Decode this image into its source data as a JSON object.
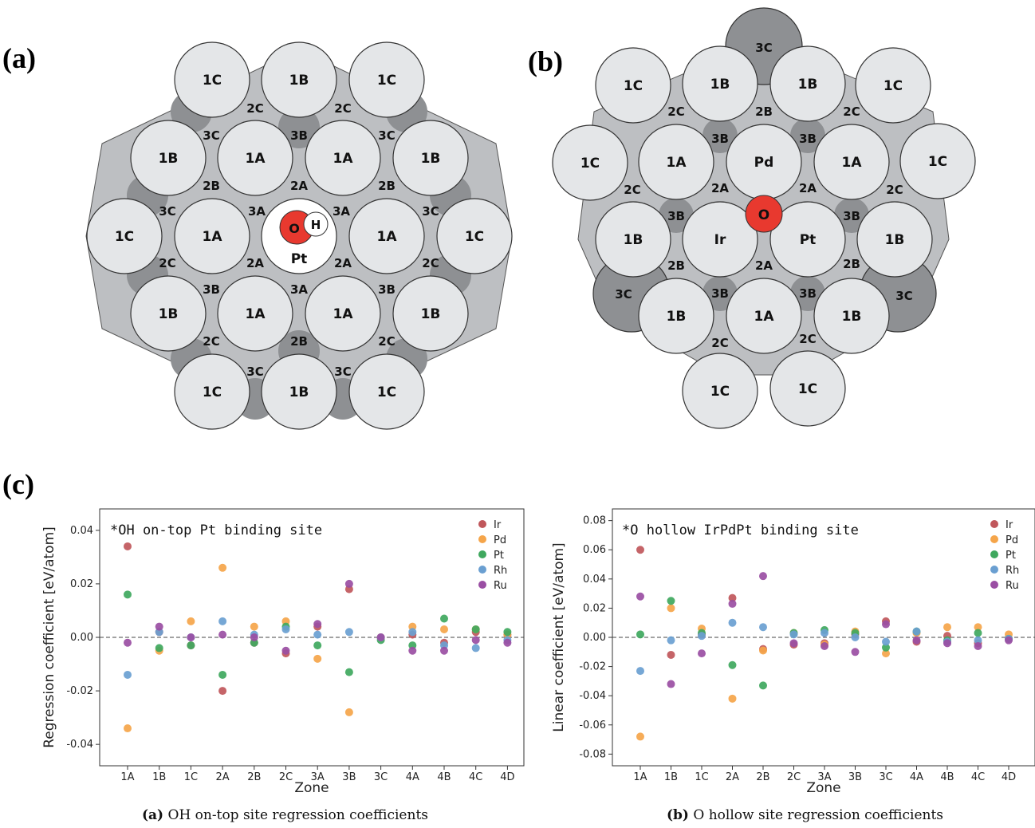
{
  "panels": {
    "a": "(a)",
    "b": "(b)",
    "c": "(c)"
  },
  "diagram_a": {
    "adsorbate_atoms": [
      "O",
      "H"
    ],
    "center_label": "Pt",
    "atom_labels": [
      "1C",
      "1B",
      "1C",
      "1B",
      "1A",
      "1A",
      "1B",
      "1C",
      "1A",
      "1A",
      "1C",
      "1B",
      "1A",
      "1A",
      "1B",
      "1C",
      "1B",
      "1C"
    ],
    "zone_labels": [
      "2C",
      "2C",
      "3C",
      "3B",
      "3C",
      "2B",
      "2A",
      "2B",
      "3C",
      "3A",
      "3A",
      "3C",
      "2C",
      "2A",
      "2A",
      "2C",
      "3B",
      "3A",
      "3B",
      "2C",
      "2B",
      "2C",
      "3C",
      "3C"
    ]
  },
  "diagram_b": {
    "adsorbate_atom": "O",
    "center_labels": [
      "Pd",
      "Ir",
      "Pt"
    ],
    "atom_labels": [
      "1C",
      "1B",
      "1B",
      "1C",
      "1C",
      "1A",
      "1A",
      "1C",
      "1B",
      "1B",
      "1B",
      "1A",
      "1B",
      "1C",
      "1C"
    ],
    "zone_labels": [
      "3C",
      "2C",
      "2B",
      "2C",
      "3B",
      "3B",
      "2C",
      "2A",
      "2A",
      "2C",
      "3B",
      "3B",
      "2B",
      "2A",
      "2B",
      "3C",
      "3B",
      "3B",
      "3C",
      "2C",
      "2C"
    ]
  },
  "legend": [
    "Ir",
    "Pd",
    "Pt",
    "Rh",
    "Ru"
  ],
  "colors": {
    "Ir": "#c0575b",
    "Pd": "#f5a54a",
    "Pt": "#3fa85e",
    "Rh": "#6a9fd1",
    "Ru": "#9a4ea3",
    "adsorbate_O": "#e8392f",
    "atom_fill": "#e4e6e8",
    "zone2": "#bdbfc2",
    "zone3": "#8e9093"
  },
  "chart_data": [
    {
      "type": "scatter",
      "title": "*OH on-top Pt binding site",
      "xlabel": "Zone",
      "ylabel": "Regression coefficient [eV/atom]",
      "caption_tag": "(a)",
      "caption": "OH on-top site regression coefficients",
      "categories": [
        "1A",
        "1B",
        "1C",
        "2A",
        "2B",
        "2C",
        "3A",
        "3B",
        "3C",
        "4A",
        "4B",
        "4C",
        "4D"
      ],
      "ylim": [
        -0.048,
        0.048
      ],
      "yticks": [
        "-0.04",
        "-0.02",
        "0.00",
        "0.02",
        "0.04"
      ],
      "ytick_values": [
        -0.04,
        -0.02,
        0.0,
        0.02,
        0.04
      ],
      "series": [
        {
          "name": "Ir",
          "values": [
            0.034,
            0.002,
            -0.003,
            -0.02,
            -0.002,
            -0.006,
            0.004,
            0.018,
            0.0,
            0.001,
            -0.002,
            0.002,
            0.001
          ]
        },
        {
          "name": "Pd",
          "values": [
            -0.034,
            -0.005,
            0.006,
            0.026,
            0.004,
            0.006,
            -0.008,
            -0.028,
            0.0,
            0.004,
            0.003,
            0.003,
            0.001
          ]
        },
        {
          "name": "Pt",
          "values": [
            0.016,
            -0.004,
            -0.003,
            -0.014,
            -0.002,
            0.004,
            -0.003,
            -0.013,
            -0.001,
            -0.003,
            0.007,
            0.003,
            0.002
          ]
        },
        {
          "name": "Rh",
          "values": [
            -0.014,
            0.002,
            0.0,
            0.006,
            0.001,
            0.003,
            0.001,
            0.002,
            0.0,
            0.002,
            -0.003,
            -0.004,
            -0.001
          ]
        },
        {
          "name": "Ru",
          "values": [
            -0.002,
            0.004,
            0.0,
            0.001,
            0.0,
            -0.005,
            0.005,
            0.02,
            0.0,
            -0.005,
            -0.005,
            -0.001,
            -0.002
          ]
        }
      ]
    },
    {
      "type": "scatter",
      "title": "*O hollow IrPdPt binding site",
      "xlabel": "Zone",
      "ylabel": "Linear coefficient [eV/atom]",
      "caption_tag": "(b)",
      "caption": "O hollow site regression coefficients",
      "categories": [
        "1A",
        "1B",
        "1C",
        "2A",
        "2B",
        "2C",
        "3A",
        "3B",
        "3C",
        "4A",
        "4B",
        "4C",
        "4D"
      ],
      "ylim": [
        -0.088,
        0.088
      ],
      "yticks": [
        "-0.08",
        "-0.06",
        "-0.04",
        "-0.02",
        "0.00",
        "0.02",
        "0.04",
        "0.06",
        "0.08"
      ],
      "ytick_values": [
        -0.08,
        -0.06,
        -0.04,
        -0.02,
        0.0,
        0.02,
        0.04,
        0.06,
        0.08
      ],
      "series": [
        {
          "name": "Ir",
          "values": [
            0.06,
            -0.012,
            0.002,
            0.027,
            -0.008,
            -0.005,
            -0.004,
            0.002,
            0.011,
            -0.003,
            0.001,
            -0.004,
            -0.001
          ]
        },
        {
          "name": "Pd",
          "values": [
            -0.068,
            0.02,
            0.006,
            -0.042,
            -0.009,
            0.003,
            -0.005,
            0.004,
            -0.011,
            0.003,
            0.007,
            0.007,
            0.002
          ]
        },
        {
          "name": "Pt",
          "values": [
            0.002,
            0.025,
            0.003,
            -0.019,
            -0.033,
            0.003,
            0.005,
            0.003,
            -0.007,
            0.004,
            -0.002,
            0.003,
            -0.001
          ]
        },
        {
          "name": "Rh",
          "values": [
            -0.023,
            -0.002,
            0.001,
            0.01,
            0.007,
            0.002,
            0.003,
            0.0,
            -0.003,
            0.004,
            -0.003,
            -0.002,
            -0.001
          ]
        },
        {
          "name": "Ru",
          "values": [
            0.028,
            -0.032,
            -0.011,
            0.023,
            0.042,
            -0.004,
            -0.006,
            -0.01,
            0.009,
            -0.002,
            -0.004,
            -0.006,
            -0.002
          ]
        }
      ]
    }
  ]
}
